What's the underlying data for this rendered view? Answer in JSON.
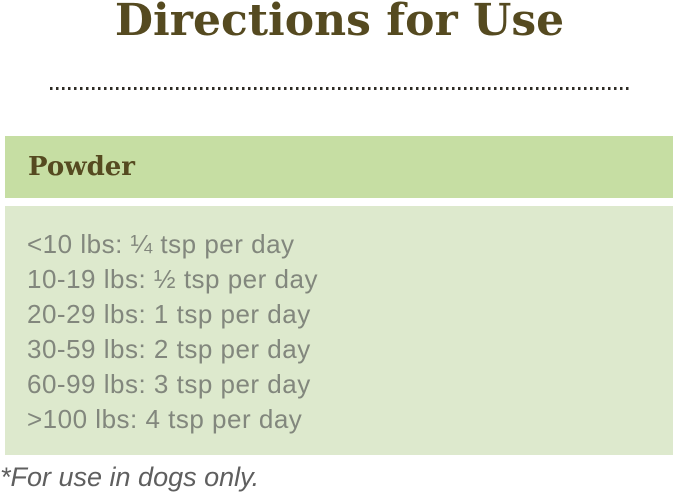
{
  "title": "Directions for Use",
  "dosage": {
    "header": "Powder",
    "rows": [
      "<10 lbs: ¼ tsp per day",
      "10-19 lbs: ½ tsp per day",
      "20-29 lbs: 1 tsp per day",
      "30-59 lbs: 2 tsp per day",
      "60-99 lbs: 3 tsp per day",
      ">100 lbs: 4 tsp per day"
    ]
  },
  "footnote": "*For use in dogs only.",
  "colors": {
    "title_text": "#554a20",
    "header_bg": "#c6dea3",
    "body_bg": "#dde9cd",
    "body_text": "#82877d",
    "footnote_text": "#5f5f5f",
    "dotted_rule": "#2e2b25"
  }
}
